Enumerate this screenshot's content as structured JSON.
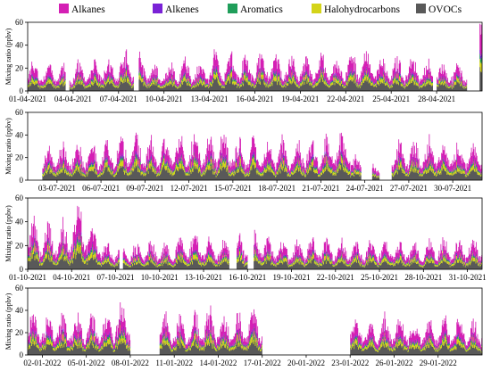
{
  "chart_data": {
    "type": "area",
    "stacked": true,
    "ylabel": "Mixing ratio (ppbv)",
    "ylim": [
      0,
      60
    ],
    "yticks": [
      0,
      20,
      40,
      60
    ],
    "legend_position": "top",
    "series": [
      {
        "name": "OVOCs",
        "color": "#595959"
      },
      {
        "name": "Halohydrocarbons",
        "color": "#d4d419"
      },
      {
        "name": "Aromatics",
        "color": "#1f9e5a"
      },
      {
        "name": "Alkenes",
        "color": "#7a22d6"
      },
      {
        "name": "Alkanes",
        "color": "#d41fb4"
      }
    ],
    "legend_order": [
      "Alkanes",
      "Alkenes",
      "Aromatics",
      "Halohydrocarbons",
      "OVOCs"
    ],
    "panels": [
      {
        "x": [
          "01-04-2021",
          "04-04-2021",
          "07-04-2021",
          "10-04-2021",
          "13-04-2021",
          "16-04-2021",
          "19-04-2021",
          "22-04-2021",
          "25-04-2021",
          "28-04-2021"
        ],
        "start": "2021-04-01",
        "end": "2021-05-01",
        "gaps": [
          [
            "2021-04-30T00:00",
            "2021-04-30T20:00"
          ],
          [
            "2021-04-03T12:00",
            "2021-04-03T18:00"
          ],
          [
            "2021-04-08T00:00",
            "2021-04-08T08:00"
          ],
          [
            "2021-04-27T18:00",
            "2021-04-28T00:00"
          ]
        ],
        "daily_total": [
          18,
          17,
          16,
          18,
          19,
          20,
          24,
          22,
          17,
          18,
          19,
          18,
          24,
          23,
          22,
          24,
          23,
          21,
          20,
          22,
          21,
          24,
          26,
          23,
          20,
          21,
          19,
          18,
          17,
          55
        ]
      },
      {
        "x": [
          "03-07-2021",
          "06-07-2021",
          "09-07-2021",
          "12-07-2021",
          "15-07-2021",
          "18-07-2021",
          "21-07-2021",
          "24-07-2021",
          "27-07-2021",
          "30-07-2021"
        ],
        "start": "2021-07-01",
        "end": "2021-08-01",
        "gaps": [
          [
            "2021-07-01T00:00",
            "2021-07-02T00:00"
          ],
          [
            "2021-07-23T18:00",
            "2021-07-24T12:00"
          ],
          [
            "2021-07-25T00:00",
            "2021-07-25T20:00"
          ]
        ],
        "daily_total": [
          0,
          22,
          24,
          25,
          23,
          26,
          28,
          30,
          26,
          27,
          29,
          30,
          28,
          29,
          27,
          26,
          25,
          26,
          27,
          28,
          30,
          29,
          16,
          14,
          22,
          24,
          25,
          26,
          27,
          25,
          24
        ]
      },
      {
        "x": [
          "01-10-2021",
          "04-10-2021",
          "07-10-2021",
          "10-10-2021",
          "13-10-2021",
          "16-10-2021",
          "19-10-2021",
          "22-10-2021",
          "25-10-2021",
          "28-10-2021",
          "31-10-2021"
        ],
        "start": "2021-10-01",
        "end": "2021-11-01",
        "gaps": [
          [
            "2021-10-07T06:00",
            "2021-10-07T12:00"
          ],
          [
            "2021-10-14T18:00",
            "2021-10-15T06:00"
          ],
          [
            "2021-10-16T00:00",
            "2021-10-16T10:00"
          ]
        ],
        "daily_total": [
          28,
          27,
          29,
          34,
          26,
          16,
          15,
          16,
          17,
          16,
          20,
          21,
          20,
          19,
          22,
          24,
          18,
          17,
          18,
          19,
          18,
          19,
          17,
          18,
          19,
          18,
          17,
          18,
          19,
          18,
          19
        ]
      },
      {
        "x": [
          "02-01-2022",
          "05-01-2022",
          "08-01-2022",
          "11-01-2022",
          "14-01-2022",
          "17-01-2022",
          "20-01-2022",
          "23-01-2022",
          "26-01-2022",
          "29-01-2022"
        ],
        "start": "2022-01-01",
        "end": "2022-02-01",
        "gaps": [
          [
            "2022-01-08T12:00",
            "2022-01-10T00:00"
          ],
          [
            "2022-01-17T00:00",
            "2022-01-22T18:00"
          ]
        ],
        "daily_total": [
          28,
          26,
          27,
          25,
          26,
          28,
          34,
          0,
          0,
          26,
          25,
          27,
          28,
          26,
          27,
          29,
          0,
          0,
          0,
          0,
          0,
          0,
          24,
          23,
          25,
          24,
          23,
          24,
          25,
          24,
          23
        ]
      }
    ]
  }
}
